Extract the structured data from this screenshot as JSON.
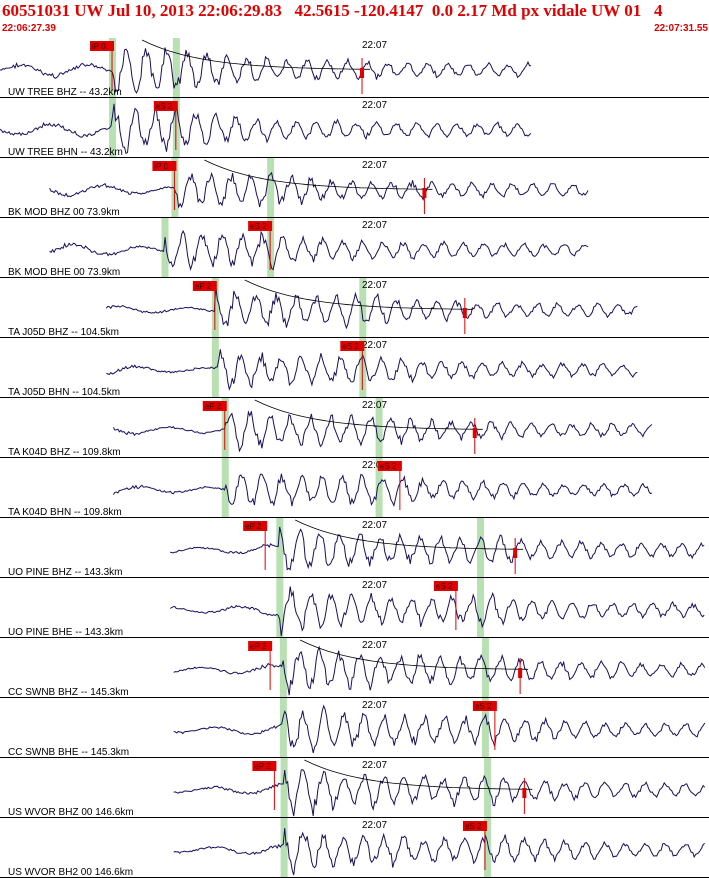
{
  "header": {
    "title": "60551031 UW Jul 10, 2013 22:06:29.83   42.5615 -120.4147  0.0 2.17 Md px vidale UW 01   4",
    "time_start": "22:06:27.39",
    "time_end": "22:07:31.55"
  },
  "time_mark_label": "22:07",
  "colors": {
    "trace": "#1a0e5c",
    "pick": "#e00000",
    "window": "#b8e0b2",
    "separator": "#000000"
  },
  "traces": [
    {
      "label": "UW TREE BHZ -- 43.2km",
      "pick": "iP 0",
      "start": 0.0,
      "end": 0.75,
      "p": 0.158,
      "s": 0.248,
      "pickPos": 0.158,
      "amp": 1.0,
      "coda": true
    },
    {
      "label": "UW TREE BHN -- 43.2km",
      "pick": "eS 2",
      "start": 0.0,
      "end": 0.75,
      "p": 0.158,
      "s": 0.248,
      "pickPos": 0.248,
      "amp": 0.8,
      "coda": false
    },
    {
      "label": "BK MOD BHZ 00 73.9km",
      "pick": "iP 0",
      "start": 0.07,
      "end": 0.83,
      "p": 0.246,
      "s": 0.381,
      "pickPos": 0.246,
      "amp": 0.7,
      "coda": true
    },
    {
      "label": "BK MOD BHE 00 73.9km",
      "pick": "eS 2",
      "start": 0.07,
      "end": 0.83,
      "p": 0.232,
      "s": 0.381,
      "pickPos": 0.381,
      "amp": 0.7,
      "coda": false
    },
    {
      "label": "TA J05D BHZ -- 104.5km",
      "pick": "eP 2",
      "start": 0.15,
      "end": 0.9,
      "p": 0.303,
      "s": 0.511,
      "pickPos": 0.303,
      "amp": 0.7,
      "coda": true
    },
    {
      "label": "TA J05D BHN -- 104.5km",
      "pick": "eS 2",
      "start": 0.15,
      "end": 0.9,
      "p": 0.303,
      "s": 0.511,
      "pickPos": 0.511,
      "amp": 0.7,
      "coda": false
    },
    {
      "label": "TA K04D BHZ -- 109.8km",
      "pick": "eP 2",
      "start": 0.16,
      "end": 0.92,
      "p": 0.317,
      "s": 0.534,
      "pickPos": 0.317,
      "amp": 0.7,
      "coda": true
    },
    {
      "label": "TA K04D BHN -- 109.8km",
      "pick": "eS 2",
      "start": 0.16,
      "end": 0.92,
      "p": 0.317,
      "s": 0.534,
      "pickPos": 0.564,
      "amp": 0.7,
      "coda": false
    },
    {
      "label": "UO PINE BHZ -- 143.3km",
      "pick": "eP 2",
      "start": 0.24,
      "end": 0.995,
      "p": 0.394,
      "s": 0.677,
      "pickPos": 0.374,
      "amp": 1.0,
      "coda": true
    },
    {
      "label": "UO PINE BHE -- 143.3km",
      "pick": "eS 2",
      "start": 0.24,
      "end": 0.995,
      "p": 0.394,
      "s": 0.677,
      "pickPos": 0.643,
      "amp": 1.0,
      "coda": false
    },
    {
      "label": "CC SWNB BHZ -- 145.3km",
      "pick": "eP 2",
      "start": 0.245,
      "end": 0.995,
      "p": 0.399,
      "s": 0.684,
      "pickPos": 0.381,
      "amp": 1.0,
      "coda": true
    },
    {
      "label": "CC SWNB BHE -- 145.3km",
      "pick": "eS 2",
      "start": 0.245,
      "end": 0.995,
      "p": 0.399,
      "s": 0.684,
      "pickPos": 0.698,
      "amp": 1.0,
      "coda": false
    },
    {
      "label": "US WVOR BHZ 00 146.6km",
      "pick": "eP 2",
      "start": 0.245,
      "end": 0.995,
      "p": 0.4,
      "s": 0.687,
      "pickPos": 0.387,
      "amp": 1.0,
      "coda": true
    },
    {
      "label": "US WVOR BH2 00 146.6km",
      "pick": "eS 2",
      "start": 0.245,
      "end": 0.995,
      "p": 0.4,
      "s": 0.687,
      "pickPos": 0.684,
      "amp": 1.0,
      "coda": false
    }
  ]
}
